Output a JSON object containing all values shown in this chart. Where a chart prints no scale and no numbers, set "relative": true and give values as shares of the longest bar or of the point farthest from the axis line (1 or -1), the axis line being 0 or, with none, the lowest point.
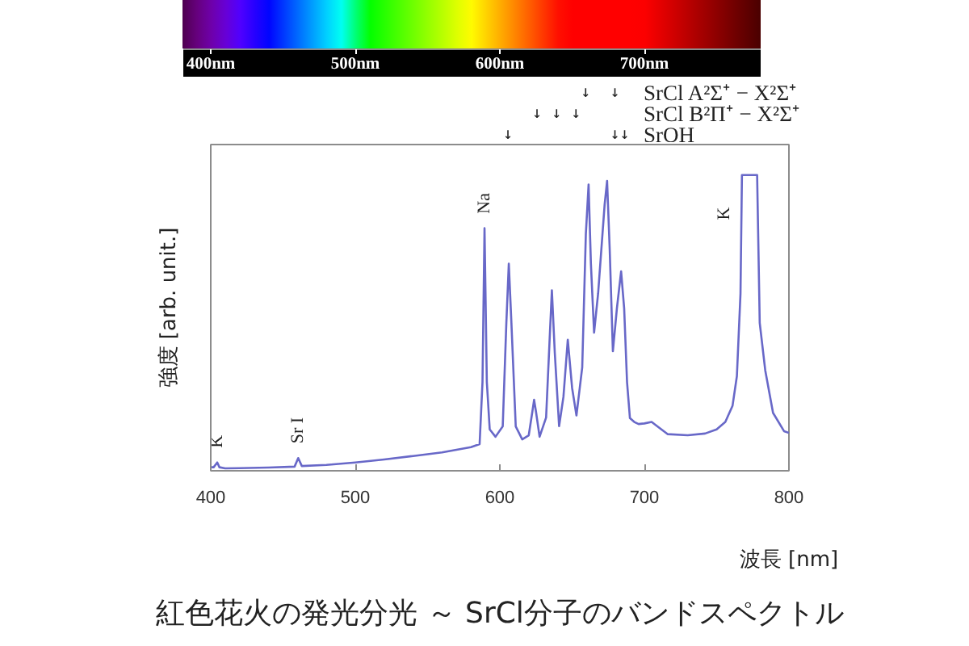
{
  "chart_data": {
    "type": "line",
    "relative": true,
    "title": "紅色花火の発光分光 ～ SrCl分子のバンドスペクトル",
    "xlabel": "波長 [nm]",
    "ylabel": "強度 [arb. unit.]",
    "color": "#6868c8",
    "x": [
      400,
      402,
      404.5,
      406,
      410,
      420,
      440,
      458,
      460.5,
      463,
      480,
      500,
      520,
      540,
      560,
      580,
      586,
      588,
      589.4,
      591,
      593,
      597,
      602,
      604.5,
      606.2,
      608,
      611,
      615.5,
      620,
      622.5,
      623.7,
      625,
      627.5,
      632,
      634.5,
      636,
      638,
      641,
      644,
      647,
      650,
      653,
      657,
      659.5,
      661.4,
      663,
      665.2,
      668,
      672.5,
      674.2,
      676,
      678.2,
      681,
      683.9,
      686,
      688,
      690,
      693,
      696,
      700,
      705,
      709,
      716,
      730,
      742,
      750,
      756,
      761,
      764,
      766.5,
      767.5,
      778,
      779.8,
      783.6,
      789,
      796.6,
      800
    ],
    "values": [
      0.012,
      0.012,
      0.028,
      0.012,
      0.008,
      0.009,
      0.011,
      0.014,
      0.043,
      0.016,
      0.02,
      0.028,
      0.038,
      0.05,
      0.062,
      0.08,
      0.09,
      0.3,
      0.82,
      0.3,
      0.14,
      0.115,
      0.15,
      0.5,
      0.7,
      0.5,
      0.15,
      0.106,
      0.12,
      0.2,
      0.24,
      0.2,
      0.115,
      0.18,
      0.45,
      0.61,
      0.4,
      0.151,
      0.25,
      0.443,
      0.28,
      0.187,
      0.35,
      0.8,
      0.968,
      0.7,
      0.467,
      0.6,
      0.9,
      0.98,
      0.75,
      0.404,
      0.55,
      0.674,
      0.55,
      0.3,
      0.178,
      0.165,
      0.158,
      0.16,
      0.165,
      0.15,
      0.124,
      0.12,
      0.126,
      0.14,
      0.165,
      0.22,
      0.32,
      0.6,
      1.0,
      1.0,
      0.5,
      0.34,
      0.196,
      0.134,
      0.128
    ],
    "xlim": [
      400,
      800
    ],
    "xticks": [
      400,
      500,
      600,
      700,
      800
    ],
    "x2lim": [
      400,
      800
    ],
    "x2ticks": [
      {
        "value": 400,
        "label": "400nm"
      },
      {
        "value": 500,
        "label": "500nm"
      },
      {
        "value": 600,
        "label": "600nm"
      },
      {
        "value": 700,
        "label": "700nm"
      }
    ],
    "annotations": [
      {
        "text": "K",
        "x": 404.5,
        "y": 0.028
      },
      {
        "text": "Sr I",
        "x": 460.5,
        "y": 0.043
      },
      {
        "text": "Na",
        "x": 589.4,
        "y": 0.82
      },
      {
        "text": "K",
        "x": 767.5,
        "y": 1.0
      },
      "        ↓  ↓",
      "SrCl A²Σ⁺ − X²Σ⁺",
      "   ↓ ↓ ↓",
      "SrCl B²Π⁺ − X²Σ⁺",
      "↓          ↓↓",
      "SrOH"
    ]
  }
}
